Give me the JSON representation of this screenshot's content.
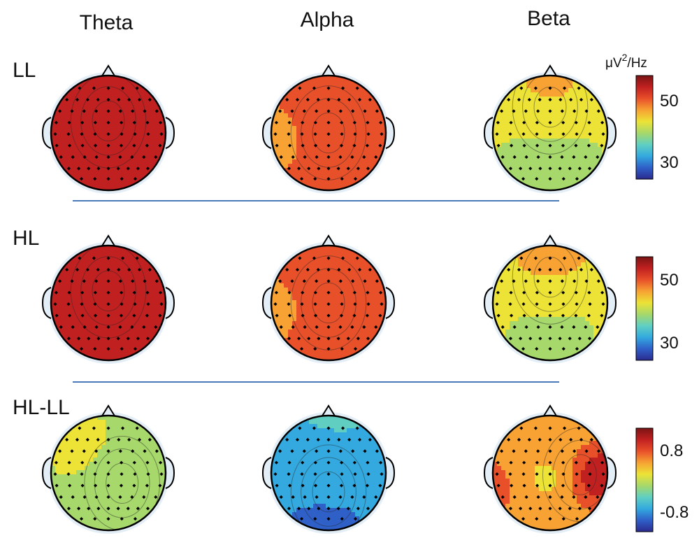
{
  "figure": {
    "column_titles": [
      "Theta",
      "Alpha",
      "Beta"
    ],
    "row_labels": [
      "LL",
      "HL",
      "HL-LL"
    ],
    "colorbars": [
      {
        "unit_main": "μV",
        "unit_sup": "2",
        "unit_tail": "/Hz",
        "ticks": [
          "50",
          "30"
        ]
      },
      {
        "ticks": [
          "50",
          "30"
        ]
      },
      {
        "ticks": [
          "0.8",
          "-0.8"
        ]
      }
    ],
    "colormap": [
      "#2b2a8f",
      "#2f60c8",
      "#33a9df",
      "#60cfc2",
      "#a6d86b",
      "#ece336",
      "#f7a233",
      "#e8502a",
      "#c12020",
      "#7a1414"
    ],
    "divider_color": "#4a79b8",
    "maps": [
      {
        "row": 0,
        "col": 0,
        "name": "LL-theta",
        "centers": [
          {
            "u": 0.0,
            "v": -0.35,
            "c": 0.98,
            "w": 0.4
          },
          {
            "u": 0.0,
            "v": 0.2,
            "c": 0.88,
            "w": 0.9
          }
        ],
        "base": 0.82
      },
      {
        "row": 0,
        "col": 1,
        "name": "LL-alpha",
        "centers": [
          {
            "u": 0.0,
            "v": 0.0,
            "c": 0.84,
            "w": 0.5
          },
          {
            "u": -0.85,
            "v": 0.1,
            "c": 0.6,
            "w": 0.3
          }
        ],
        "base": 0.74
      },
      {
        "row": 0,
        "col": 2,
        "name": "LL-beta",
        "centers": [
          {
            "u": 0.0,
            "v": -0.75,
            "c": 0.66,
            "w": 0.45
          },
          {
            "u": 0.0,
            "v": 0.55,
            "c": 0.45,
            "w": 0.6
          }
        ],
        "base": 0.54
      },
      {
        "row": 1,
        "col": 0,
        "name": "HL-theta",
        "centers": [
          {
            "u": 0.0,
            "v": -0.35,
            "c": 0.99,
            "w": 0.4
          },
          {
            "u": 0.0,
            "v": 0.2,
            "c": 0.88,
            "w": 0.9
          }
        ],
        "base": 0.82
      },
      {
        "row": 1,
        "col": 1,
        "name": "HL-alpha",
        "centers": [
          {
            "u": 0.0,
            "v": 0.0,
            "c": 0.86,
            "w": 0.5
          },
          {
            "u": -0.85,
            "v": 0.1,
            "c": 0.6,
            "w": 0.3
          }
        ],
        "base": 0.75
      },
      {
        "row": 1,
        "col": 2,
        "name": "HL-beta",
        "centers": [
          {
            "u": 0.0,
            "v": -0.75,
            "c": 0.68,
            "w": 0.45
          },
          {
            "u": 0.0,
            "v": 0.55,
            "c": 0.46,
            "w": 0.6
          }
        ],
        "base": 0.55
      },
      {
        "row": 2,
        "col": 0,
        "name": "HLLL-theta",
        "centers": [
          {
            "u": 0.4,
            "v": 0.3,
            "c": 0.44,
            "w": 0.5
          },
          {
            "u": -0.3,
            "v": -0.3,
            "c": 0.52,
            "w": 0.5
          }
        ],
        "base": 0.48
      },
      {
        "row": 2,
        "col": 1,
        "name": "HLLL-alpha",
        "centers": [
          {
            "u": 0.0,
            "v": 0.55,
            "c": 0.12,
            "w": 0.7
          },
          {
            "u": 0.1,
            "v": -0.6,
            "c": 0.32,
            "w": 0.6
          }
        ],
        "base": 0.24
      },
      {
        "row": 2,
        "col": 2,
        "name": "HLLL-beta",
        "centers": [
          {
            "u": 0.88,
            "v": 0.05,
            "c": 0.97,
            "w": 0.28
          },
          {
            "u": -0.88,
            "v": 0.15,
            "c": 0.82,
            "w": 0.3
          },
          {
            "u": -0.3,
            "v": -0.1,
            "c": 0.55,
            "w": 0.35
          },
          {
            "u": -0.2,
            "v": -0.6,
            "c": 0.72,
            "w": 0.3
          }
        ],
        "base": 0.66
      }
    ]
  }
}
